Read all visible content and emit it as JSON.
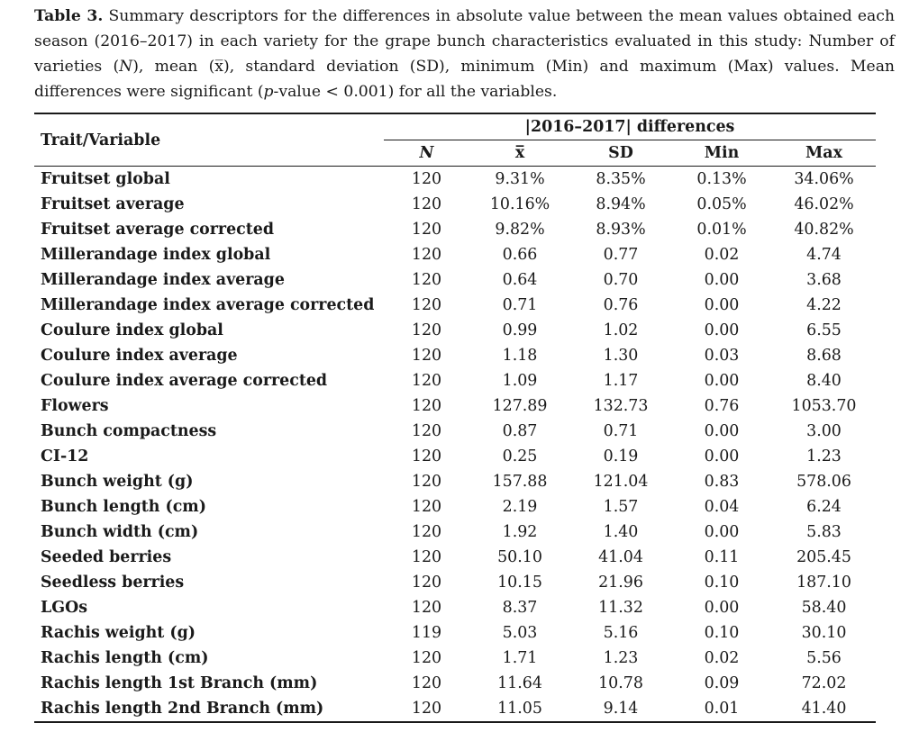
{
  "caption": {
    "label": "Table 3.",
    "text_1": " Summary descriptors for the differences in absolute value between the mean values obtained each season (2016–2017) in each variety for the grape bunch characteristics evaluated in this study: Number of varieties (",
    "n_symbol": "N",
    "text_2": "), mean (",
    "mean_symbol": "x̅",
    "text_3": "), standard deviation (SD), minimum (Min) and maximum (Max) values. Mean differences were significant (",
    "p_symbol": "p",
    "text_4": "-value < 0.001) for all the variables."
  },
  "table": {
    "trait_header": "Trait/Variable",
    "group_header": "|2016–2017| differences",
    "columns": [
      "N",
      "x̅",
      "SD",
      "Min",
      "Max"
    ],
    "rows": [
      {
        "variable": "Fruitset global",
        "values": [
          "120",
          "9.31%",
          "8.35%",
          "0.13%",
          "34.06%"
        ]
      },
      {
        "variable": "Fruitset average",
        "values": [
          "120",
          "10.16%",
          "8.94%",
          "0.05%",
          "46.02%"
        ]
      },
      {
        "variable": "Fruitset average corrected",
        "values": [
          "120",
          "9.82%",
          "8.93%",
          "0.01%",
          "40.82%"
        ]
      },
      {
        "variable": "Millerandage index global",
        "values": [
          "120",
          "0.66",
          "0.77",
          "0.02",
          "4.74"
        ]
      },
      {
        "variable": "Millerandage index average",
        "values": [
          "120",
          "0.64",
          "0.70",
          "0.00",
          "3.68"
        ]
      },
      {
        "variable": "Millerandage index average corrected",
        "values": [
          "120",
          "0.71",
          "0.76",
          "0.00",
          "4.22"
        ]
      },
      {
        "variable": "Coulure index global",
        "values": [
          "120",
          "0.99",
          "1.02",
          "0.00",
          "6.55"
        ]
      },
      {
        "variable": "Coulure index average",
        "values": [
          "120",
          "1.18",
          "1.30",
          "0.03",
          "8.68"
        ]
      },
      {
        "variable": "Coulure index average corrected",
        "values": [
          "120",
          "1.09",
          "1.17",
          "0.00",
          "8.40"
        ]
      },
      {
        "variable": "Flowers",
        "values": [
          "120",
          "127.89",
          "132.73",
          "0.76",
          "1053.70"
        ]
      },
      {
        "variable": "Bunch compactness",
        "values": [
          "120",
          "0.87",
          "0.71",
          "0.00",
          "3.00"
        ]
      },
      {
        "variable": "CI-12",
        "values": [
          "120",
          "0.25",
          "0.19",
          "0.00",
          "1.23"
        ]
      },
      {
        "variable": "Bunch weight (g)",
        "values": [
          "120",
          "157.88",
          "121.04",
          "0.83",
          "578.06"
        ]
      },
      {
        "variable": "Bunch length (cm)",
        "values": [
          "120",
          "2.19",
          "1.57",
          "0.04",
          "6.24"
        ]
      },
      {
        "variable": "Bunch width (cm)",
        "values": [
          "120",
          "1.92",
          "1.40",
          "0.00",
          "5.83"
        ]
      },
      {
        "variable": "Seeded berries",
        "values": [
          "120",
          "50.10",
          "41.04",
          "0.11",
          "205.45"
        ]
      },
      {
        "variable": "Seedless berries",
        "values": [
          "120",
          "10.15",
          "21.96",
          "0.10",
          "187.10"
        ]
      },
      {
        "variable": "LGOs",
        "values": [
          "120",
          "8.37",
          "11.32",
          "0.00",
          "58.40"
        ]
      },
      {
        "variable": "Rachis weight (g)",
        "values": [
          "119",
          "5.03",
          "5.16",
          "0.10",
          "30.10"
        ]
      },
      {
        "variable": "Rachis length (cm)",
        "values": [
          "120",
          "1.71",
          "1.23",
          "0.02",
          "5.56"
        ]
      },
      {
        "variable": "Rachis length 1st Branch (mm)",
        "values": [
          "120",
          "11.64",
          "10.78",
          "0.09",
          "72.02"
        ]
      },
      {
        "variable": "Rachis length 2nd Branch (mm)",
        "values": [
          "120",
          "11.05",
          "9.14",
          "0.01",
          "41.40"
        ]
      }
    ]
  }
}
